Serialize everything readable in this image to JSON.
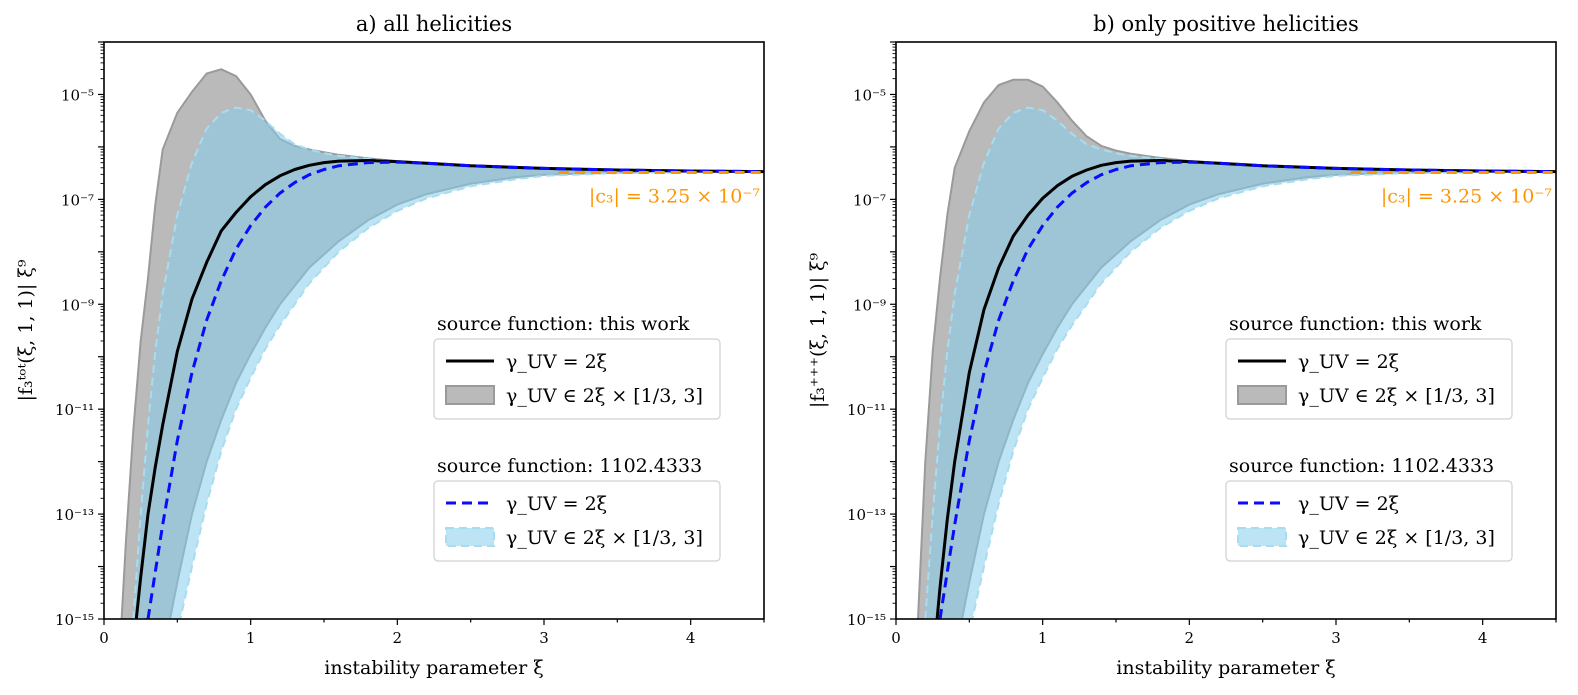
{
  "colors": {
    "black_line": "#000000",
    "blue_dashed": "#0a0aff",
    "gray_band": "#8f8f8f",
    "gray_band_edge": "#9a9a9a",
    "skyblue_band": "#87ceeb",
    "skyblue_edge": "#a8dcf0",
    "orange_asymptote": "#ff9500",
    "legend_edge": "#d0d0d0"
  },
  "chart_data": [
    {
      "type": "line",
      "title": "a) all helicities",
      "xlabel": "instability parameter ξ",
      "ylabel": "|f₃ᵗᵒᵗ(ξ, 1, 1)| ξ⁹",
      "xlim": [
        0,
        4.5
      ],
      "ylim_log10": [
        -15,
        -4
      ],
      "yscale": "log",
      "xticks": [
        0,
        1,
        2,
        3,
        4
      ],
      "yticks_log10": [
        -15,
        -13,
        -11,
        -9,
        -7,
        -5
      ],
      "ytick_labels": [
        "10⁻¹⁵",
        "10⁻¹³",
        "10⁻¹¹",
        "10⁻⁹",
        "10⁻⁷",
        "10⁻⁵"
      ],
      "x": [
        0.1,
        0.15,
        0.2,
        0.25,
        0.3,
        0.35,
        0.4,
        0.5,
        0.6,
        0.7,
        0.8,
        0.9,
        1.0,
        1.1,
        1.2,
        1.3,
        1.4,
        1.5,
        1.6,
        1.8,
        2.0,
        2.2,
        2.5,
        3.0,
        3.5,
        4.0,
        4.5
      ],
      "series": [
        {
          "name": "γ_UV = 2ξ (this work)",
          "kind": "line",
          "style": "solid",
          "color_key": "black_line",
          "x": [
            0.22,
            0.25,
            0.3,
            0.35,
            0.4,
            0.5,
            0.6,
            0.7,
            0.8,
            0.9,
            1.0,
            1.1,
            1.2,
            1.3,
            1.4,
            1.5,
            1.6,
            1.8,
            2.0,
            2.2,
            2.5,
            3.0,
            3.5,
            4.0,
            4.5
          ],
          "log10_y": [
            -15.0,
            -14.2,
            -13.0,
            -12.1,
            -11.3,
            -9.9,
            -8.9,
            -8.2,
            -7.6,
            -7.25,
            -6.95,
            -6.72,
            -6.55,
            -6.43,
            -6.35,
            -6.3,
            -6.27,
            -6.26,
            -6.28,
            -6.31,
            -6.36,
            -6.41,
            -6.44,
            -6.46,
            -6.47
          ]
        },
        {
          "name": "γ_UV ∈ 2ξ × [1/3, 3] (this work)",
          "kind": "band",
          "color_key": "gray_band",
          "x": [
            0.12,
            0.15,
            0.2,
            0.25,
            0.3,
            0.35,
            0.4,
            0.5,
            0.6,
            0.7,
            0.8,
            0.9,
            1.0,
            1.1,
            1.2,
            1.3,
            1.4,
            1.5,
            1.6,
            1.8,
            2.0,
            2.2,
            2.5,
            3.0,
            3.5,
            4.0,
            4.5
          ],
          "log10_upper": [
            -15.0,
            -13.5,
            -11.4,
            -9.7,
            -8.5,
            -7.1,
            -6.05,
            -5.35,
            -4.95,
            -4.6,
            -4.52,
            -4.65,
            -5.0,
            -5.5,
            -5.85,
            -5.98,
            -6.05,
            -6.1,
            -6.15,
            -6.22,
            -6.27,
            -6.31,
            -6.36,
            -6.41,
            -6.44,
            -6.46,
            -6.47
          ],
          "lower_x": [
            0.45,
            0.5,
            0.6,
            0.7,
            0.8,
            0.9,
            1.0,
            1.1,
            1.2,
            1.4,
            1.6,
            1.8,
            2.0,
            2.2,
            2.5,
            2.8,
            3.0,
            3.5,
            4.0,
            4.5
          ],
          "log10_lower": [
            -15.0,
            -14.3,
            -13.0,
            -12.0,
            -11.2,
            -10.5,
            -9.95,
            -9.45,
            -9.0,
            -8.3,
            -7.8,
            -7.4,
            -7.1,
            -6.9,
            -6.7,
            -6.58,
            -6.53,
            -6.49,
            -6.47,
            -6.47
          ]
        },
        {
          "name": "γ_UV = 2ξ (1102.4333)",
          "kind": "line",
          "style": "dashed",
          "color_key": "blue_dashed",
          "x": [
            0.3,
            0.35,
            0.4,
            0.5,
            0.6,
            0.7,
            0.8,
            0.9,
            1.0,
            1.1,
            1.2,
            1.3,
            1.4,
            1.5,
            1.6,
            1.8,
            2.0,
            2.2,
            2.5,
            3.0,
            3.5,
            4.0,
            4.5
          ],
          "log10_y": [
            -15.0,
            -14.1,
            -13.2,
            -11.6,
            -10.3,
            -9.3,
            -8.55,
            -7.95,
            -7.5,
            -7.15,
            -6.88,
            -6.68,
            -6.53,
            -6.43,
            -6.36,
            -6.3,
            -6.29,
            -6.31,
            -6.36,
            -6.41,
            -6.44,
            -6.46,
            -6.47
          ]
        },
        {
          "name": "γ_UV ∈ 2ξ × [1/3, 3] (1102.4333)",
          "kind": "band",
          "color_key": "skyblue_band",
          "x": [
            0.2,
            0.25,
            0.3,
            0.35,
            0.4,
            0.5,
            0.6,
            0.7,
            0.8,
            0.9,
            1.0,
            1.1,
            1.2,
            1.3,
            1.4,
            1.5,
            1.6,
            1.8,
            2.0,
            2.2,
            2.5,
            3.0,
            3.5,
            4.0,
            4.5
          ],
          "log10_upper": [
            -15.0,
            -13.0,
            -11.3,
            -9.9,
            -8.8,
            -7.3,
            -6.3,
            -5.65,
            -5.35,
            -5.25,
            -5.3,
            -5.5,
            -5.75,
            -5.95,
            -6.05,
            -6.12,
            -6.17,
            -6.23,
            -6.28,
            -6.32,
            -6.37,
            -6.42,
            -6.45,
            -6.46,
            -6.47
          ],
          "lower_x": [
            0.52,
            0.6,
            0.7,
            0.8,
            0.9,
            1.0,
            1.1,
            1.2,
            1.4,
            1.6,
            1.8,
            2.0,
            2.2,
            2.5,
            2.8,
            3.0,
            3.5,
            4.0,
            4.5
          ],
          "log10_lower": [
            -15.0,
            -14.0,
            -12.8,
            -11.8,
            -11.0,
            -10.4,
            -9.85,
            -9.4,
            -8.6,
            -8.0,
            -7.55,
            -7.22,
            -6.98,
            -6.75,
            -6.62,
            -6.55,
            -6.5,
            -6.48,
            -6.47
          ]
        }
      ],
      "asymptote": {
        "label": "|c₃| = 3.25 × 10⁻⁷",
        "value": 3.25e-07,
        "x_from": 3.1,
        "color_key": "orange_asymptote"
      },
      "legend": {
        "placement": "center-right",
        "groups": [
          {
            "title": "source function: this work",
            "entries": [
              "γ_UV = 2ξ",
              "γ_UV ∈ 2ξ × [1/3, 3]"
            ]
          },
          {
            "title": "source function: 1102.4333",
            "entries": [
              "γ_UV = 2ξ",
              "γ_UV ∈ 2ξ × [1/3, 3]"
            ]
          }
        ]
      }
    },
    {
      "type": "line",
      "title": "b) only positive helicities",
      "xlabel": "instability parameter ξ",
      "ylabel": "|f₃⁺⁺⁺(ξ, 1, 1)| ξ⁹",
      "xlim": [
        0,
        4.5
      ],
      "ylim_log10": [
        -15,
        -4
      ],
      "yscale": "log",
      "xticks": [
        0,
        1,
        2,
        3,
        4
      ],
      "yticks_log10": [
        -15,
        -13,
        -11,
        -9,
        -7,
        -5
      ],
      "ytick_labels": [
        "10⁻¹⁵",
        "10⁻¹³",
        "10⁻¹¹",
        "10⁻⁹",
        "10⁻⁷",
        "10⁻⁵"
      ],
      "series": [
        {
          "name": "γ_UV = 2ξ (this work)",
          "kind": "line",
          "style": "solid",
          "color_key": "black_line",
          "x": [
            0.28,
            0.3,
            0.35,
            0.4,
            0.5,
            0.6,
            0.7,
            0.8,
            0.9,
            1.0,
            1.1,
            1.2,
            1.3,
            1.4,
            1.5,
            1.6,
            1.8,
            2.0,
            2.2,
            2.5,
            3.0,
            3.5,
            4.0,
            4.5
          ],
          "log10_y": [
            -15.0,
            -14.4,
            -13.1,
            -12.0,
            -10.3,
            -9.1,
            -8.3,
            -7.7,
            -7.3,
            -6.98,
            -6.74,
            -6.56,
            -6.44,
            -6.35,
            -6.3,
            -6.27,
            -6.26,
            -6.28,
            -6.31,
            -6.36,
            -6.41,
            -6.44,
            -6.46,
            -6.47
          ]
        },
        {
          "name": "γ_UV ∈ 2ξ × [1/3, 3] (this work)",
          "kind": "band",
          "color_key": "gray_band",
          "x": [
            0.15,
            0.2,
            0.25,
            0.3,
            0.35,
            0.4,
            0.5,
            0.6,
            0.7,
            0.8,
            0.9,
            1.0,
            1.1,
            1.2,
            1.3,
            1.4,
            1.5,
            1.6,
            1.8,
            2.0,
            2.2,
            2.5,
            3.0,
            3.5,
            4.0,
            4.5
          ],
          "log10_upper": [
            -15.0,
            -12.0,
            -9.9,
            -8.5,
            -7.3,
            -6.4,
            -5.7,
            -5.15,
            -4.82,
            -4.72,
            -4.72,
            -4.85,
            -5.15,
            -5.5,
            -5.8,
            -5.98,
            -6.07,
            -6.13,
            -6.21,
            -6.27,
            -6.31,
            -6.36,
            -6.41,
            -6.44,
            -6.46,
            -6.47
          ],
          "lower_x": [
            0.45,
            0.5,
            0.6,
            0.7,
            0.8,
            0.9,
            1.0,
            1.1,
            1.2,
            1.4,
            1.6,
            1.8,
            2.0,
            2.2,
            2.5,
            2.8,
            3.0,
            3.5,
            4.0,
            4.5
          ],
          "log10_lower": [
            -15.0,
            -14.3,
            -13.0,
            -12.0,
            -11.2,
            -10.5,
            -9.95,
            -9.45,
            -9.0,
            -8.3,
            -7.8,
            -7.4,
            -7.1,
            -6.9,
            -6.7,
            -6.58,
            -6.53,
            -6.49,
            -6.47,
            -6.47
          ]
        },
        {
          "name": "γ_UV = 2ξ (1102.4333)",
          "kind": "line",
          "style": "dashed",
          "color_key": "blue_dashed",
          "x": [
            0.3,
            0.35,
            0.4,
            0.5,
            0.6,
            0.7,
            0.8,
            0.9,
            1.0,
            1.1,
            1.2,
            1.3,
            1.4,
            1.5,
            1.6,
            1.8,
            2.0,
            2.2,
            2.5,
            3.0,
            3.5,
            4.0,
            4.5
          ],
          "log10_y": [
            -15.0,
            -14.1,
            -13.2,
            -11.6,
            -10.3,
            -9.3,
            -8.55,
            -7.95,
            -7.5,
            -7.15,
            -6.88,
            -6.68,
            -6.53,
            -6.43,
            -6.36,
            -6.3,
            -6.29,
            -6.31,
            -6.36,
            -6.41,
            -6.44,
            -6.46,
            -6.47
          ]
        },
        {
          "name": "γ_UV ∈ 2ξ × [1/3, 3] (1102.4333)",
          "kind": "band",
          "color_key": "skyblue_band",
          "x": [
            0.2,
            0.25,
            0.3,
            0.35,
            0.4,
            0.5,
            0.6,
            0.7,
            0.8,
            0.9,
            1.0,
            1.1,
            1.2,
            1.3,
            1.4,
            1.5,
            1.6,
            1.8,
            2.0,
            2.2,
            2.5,
            3.0,
            3.5,
            4.0,
            4.5
          ],
          "log10_upper": [
            -15.0,
            -13.0,
            -11.3,
            -9.9,
            -8.8,
            -7.3,
            -6.3,
            -5.65,
            -5.35,
            -5.25,
            -5.3,
            -5.5,
            -5.75,
            -5.95,
            -6.05,
            -6.12,
            -6.17,
            -6.23,
            -6.28,
            -6.32,
            -6.37,
            -6.42,
            -6.45,
            -6.46,
            -6.47
          ],
          "lower_x": [
            0.52,
            0.6,
            0.7,
            0.8,
            0.9,
            1.0,
            1.1,
            1.2,
            1.4,
            1.6,
            1.8,
            2.0,
            2.2,
            2.5,
            2.8,
            3.0,
            3.5,
            4.0,
            4.5
          ],
          "log10_lower": [
            -15.0,
            -14.0,
            -12.8,
            -11.8,
            -11.0,
            -10.4,
            -9.85,
            -9.4,
            -8.6,
            -8.0,
            -7.55,
            -7.22,
            -6.98,
            -6.75,
            -6.62,
            -6.55,
            -6.5,
            -6.48,
            -6.47
          ]
        }
      ],
      "asymptote": {
        "label": "|c₃| = 3.25 × 10⁻⁷",
        "value": 3.25e-07,
        "x_from": 3.1,
        "color_key": "orange_asymptote"
      },
      "legend": {
        "placement": "center-right",
        "groups": [
          {
            "title": "source function: this work",
            "entries": [
              "γ_UV = 2ξ",
              "γ_UV ∈ 2ξ × [1/3, 3]"
            ]
          },
          {
            "title": "source function: 1102.4333",
            "entries": [
              "γ_UV = 2ξ",
              "γ_UV ∈ 2ξ × [1/3, 3]"
            ]
          }
        ]
      }
    }
  ]
}
